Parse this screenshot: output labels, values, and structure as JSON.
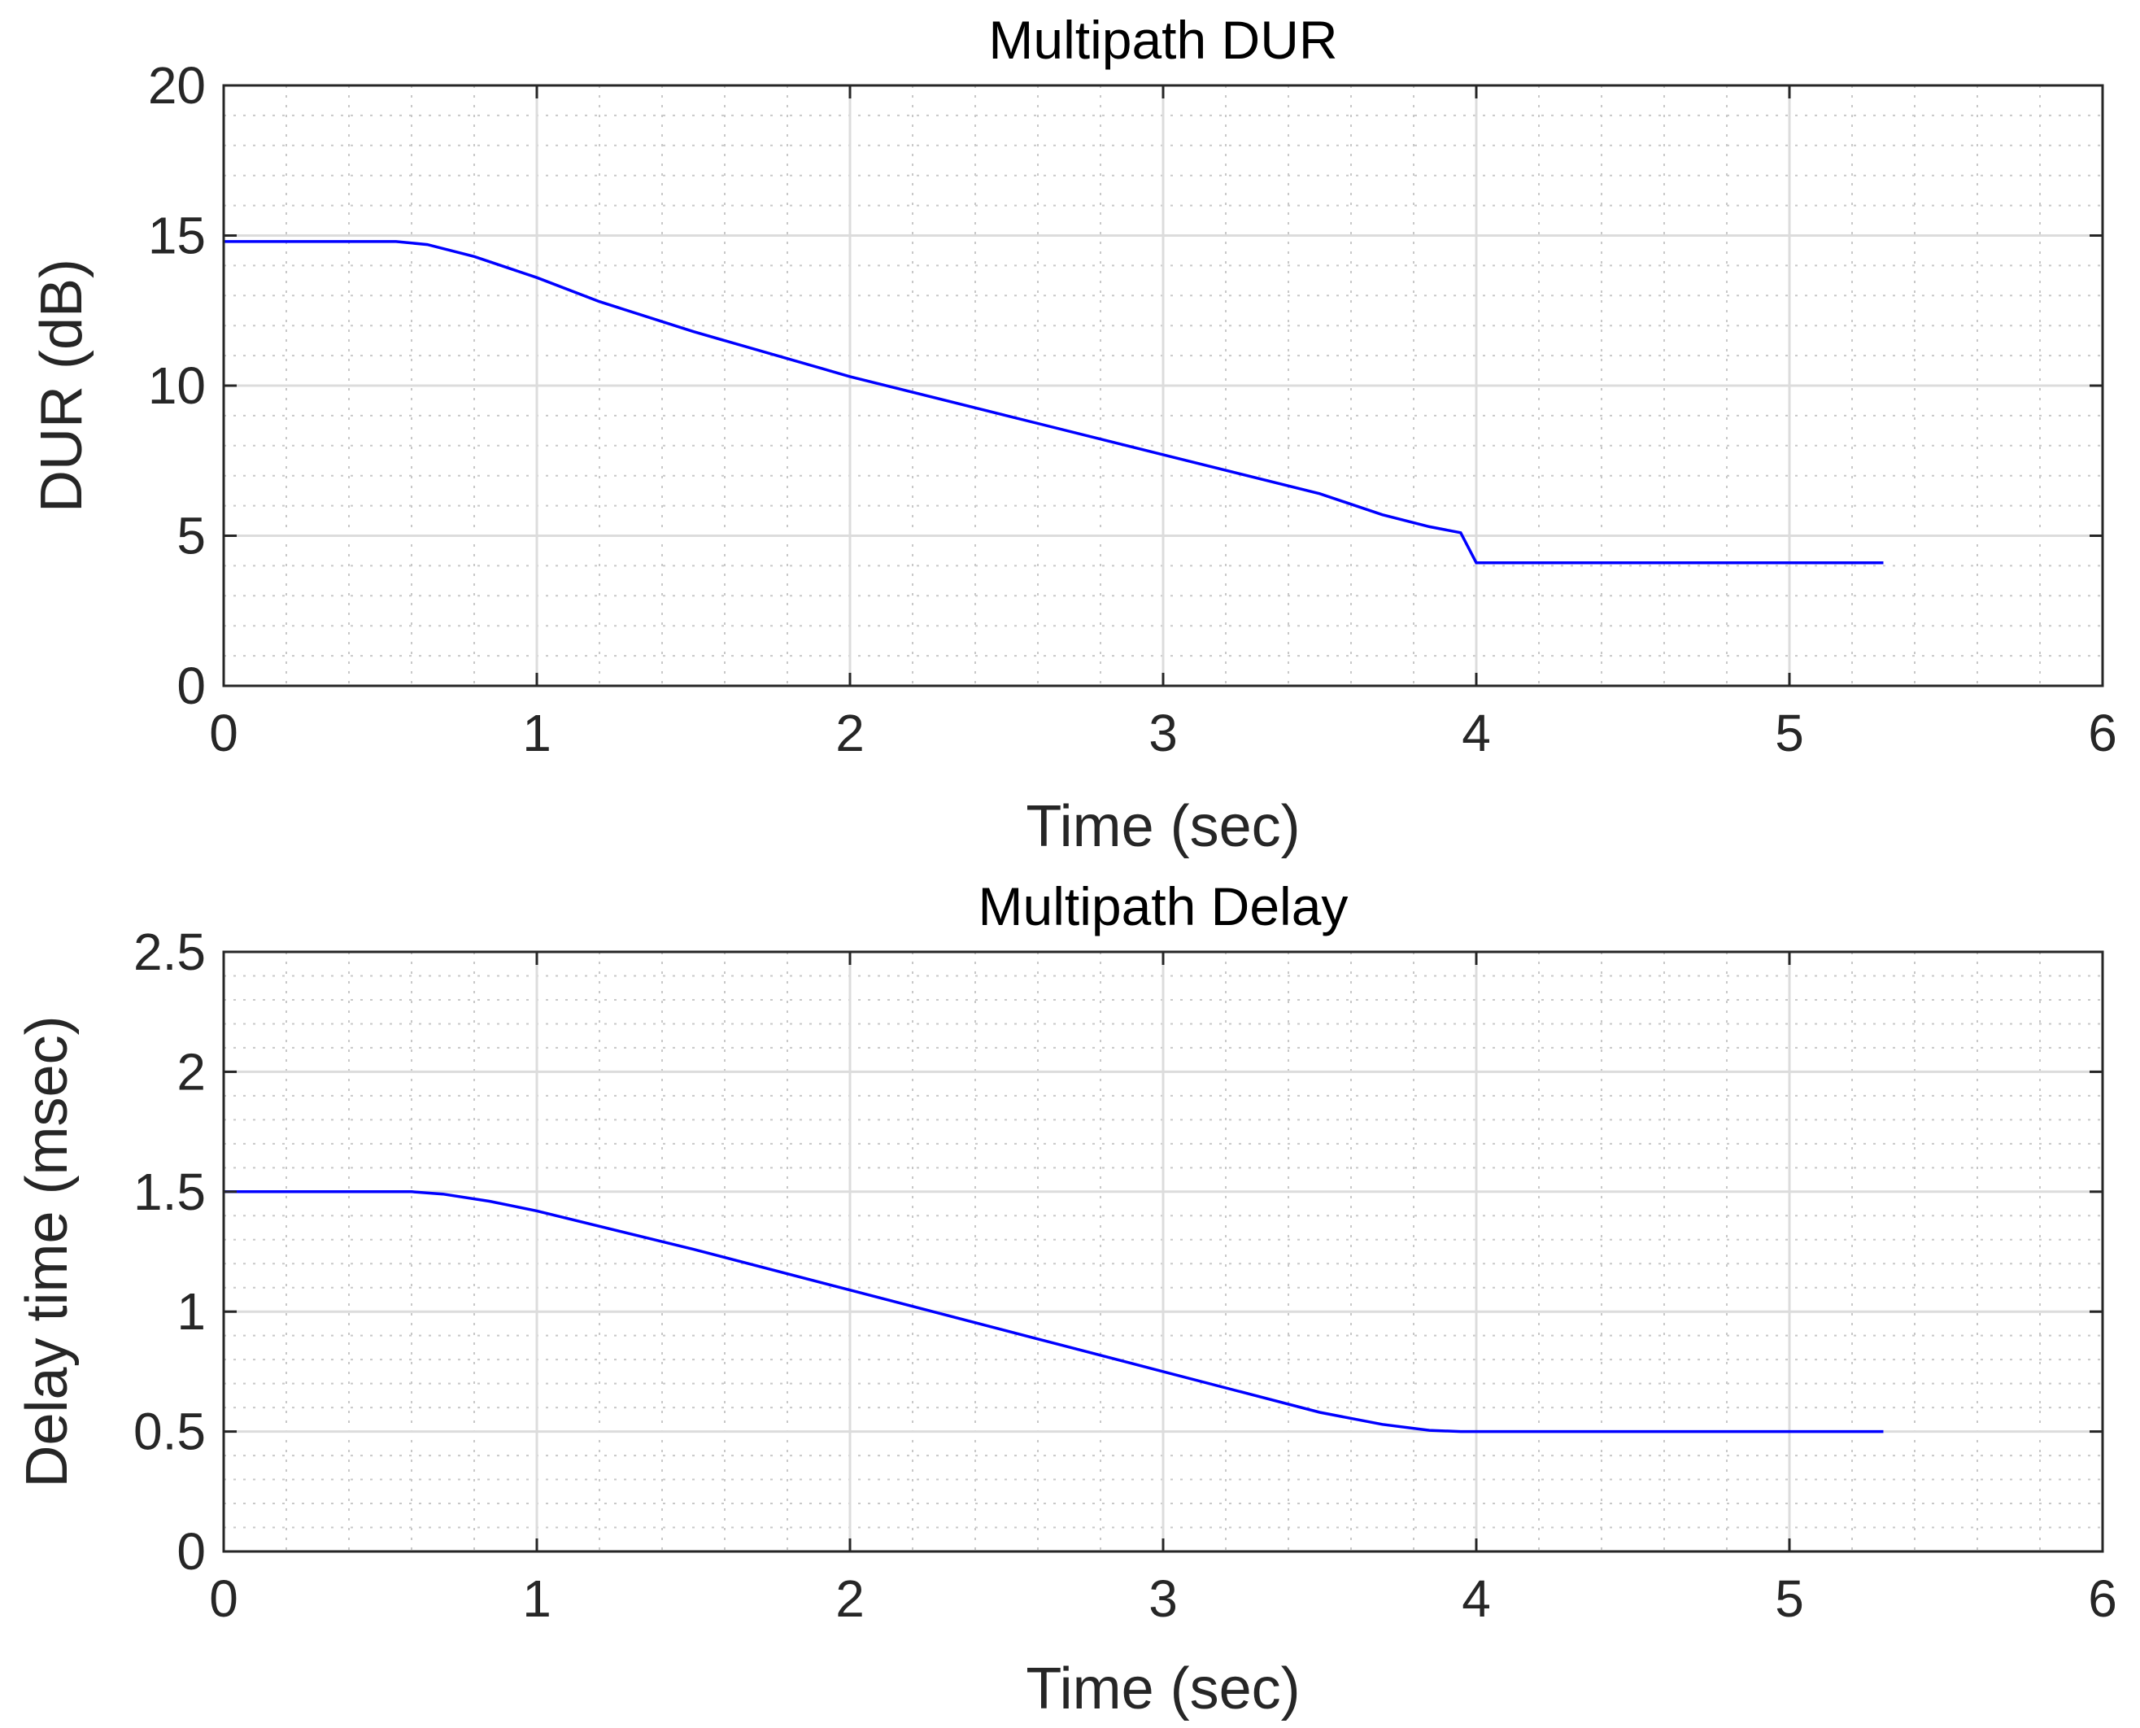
{
  "chart_data": [
    {
      "type": "line",
      "title": "Multipath DUR",
      "xlabel": "Time (sec)",
      "ylabel": "DUR (dB)",
      "xlim": [
        0,
        6
      ],
      "ylim": [
        0,
        20
      ],
      "xticks": [
        "0",
        "1",
        "2",
        "3",
        "4",
        "5",
        "6"
      ],
      "yticks": [
        "0",
        "5",
        "10",
        "15",
        "20"
      ],
      "grid": true,
      "minor_grid": true,
      "line_color": "#0000ff",
      "series": [
        {
          "x": [
            0,
            0.3,
            0.55,
            0.65,
            0.8,
            1.0,
            1.2,
            1.5,
            2.0,
            2.5,
            3.0,
            3.5,
            3.7,
            3.85,
            3.95,
            4.0,
            4.5,
            5.0,
            5.3
          ],
          "y": [
            14.8,
            14.8,
            14.8,
            14.7,
            14.3,
            13.6,
            12.8,
            11.8,
            10.3,
            9.0,
            7.7,
            6.4,
            5.7,
            5.3,
            5.1,
            4.1,
            4.1,
            4.1,
            4.1
          ]
        }
      ]
    },
    {
      "type": "line",
      "title": "Multipath Delay",
      "xlabel": "Time (sec)",
      "ylabel": "Delay time (msec)",
      "xlim": [
        0,
        6
      ],
      "ylim": [
        0,
        2.5
      ],
      "xticks": [
        "0",
        "1",
        "2",
        "3",
        "4",
        "5",
        "6"
      ],
      "yticks": [
        "0",
        "0.5",
        "1",
        "1.5",
        "2",
        "2.5"
      ],
      "grid": true,
      "minor_grid": true,
      "line_color": "#0000ff",
      "series": [
        {
          "x": [
            0,
            0.3,
            0.6,
            0.7,
            0.85,
            1.0,
            1.5,
            2.0,
            2.5,
            3.0,
            3.5,
            3.7,
            3.85,
            3.95,
            4.5,
            5.0,
            5.3
          ],
          "y": [
            1.5,
            1.5,
            1.5,
            1.49,
            1.46,
            1.42,
            1.26,
            1.09,
            0.92,
            0.75,
            0.58,
            0.53,
            0.505,
            0.5,
            0.5,
            0.5,
            0.5
          ]
        }
      ]
    }
  ]
}
